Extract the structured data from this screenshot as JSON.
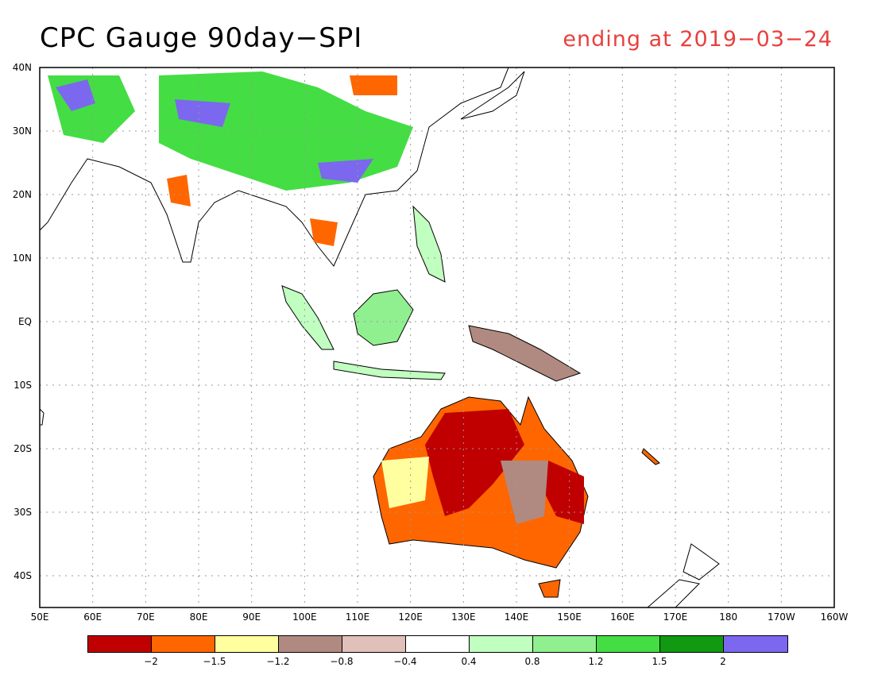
{
  "title": "CPC Gauge 90day−SPI",
  "subtitle": "ending at 2019−03−24",
  "map": {
    "lat_labels": [
      "40N",
      "30N",
      "20N",
      "10N",
      "EQ",
      "10S",
      "20S",
      "30S",
      "40S"
    ],
    "lon_labels": [
      "50E",
      "60E",
      "70E",
      "80E",
      "90E",
      "100E",
      "110E",
      "120E",
      "130E",
      "140E",
      "150E",
      "160E",
      "170E",
      "180",
      "170W",
      "160W"
    ]
  },
  "legend": {
    "colors": [
      "#c00000",
      "#ff6600",
      "#ffffa0",
      "#b08a80",
      "#e0c0b8",
      "#ffffff",
      "#c0ffc0",
      "#90f090",
      "#44dd44",
      "#119911",
      "#7b68ee"
    ],
    "ticks": [
      "−2",
      "−1.5",
      "−1.2",
      "−0.8",
      "−0.4",
      "0.4",
      "0.8",
      "1.2",
      "1.5",
      "2"
    ]
  }
}
